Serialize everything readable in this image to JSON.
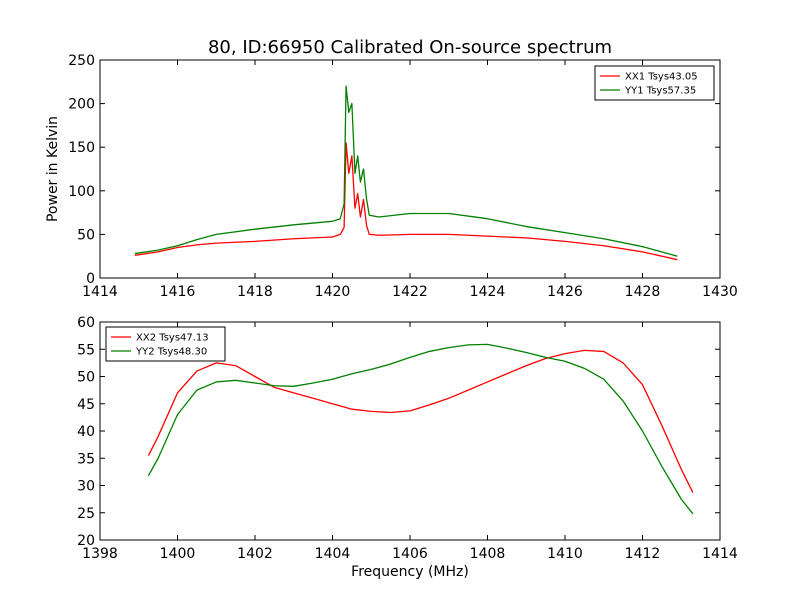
{
  "chart_data": [
    {
      "type": "line",
      "title": "80, ID:66950 Calibrated On-source spectrum",
      "xlabel": "",
      "ylabel": "Power in Kelvin",
      "xlim": [
        1414,
        1430
      ],
      "ylim": [
        0,
        250
      ],
      "xticks": [
        1414,
        1416,
        1418,
        1420,
        1422,
        1424,
        1426,
        1428,
        1430
      ],
      "yticks": [
        0,
        50,
        100,
        150,
        200,
        250
      ],
      "grid": false,
      "legend_position": "top-right",
      "series": [
        {
          "name": "XX1 Tsys43.05",
          "color": "#ff0000",
          "points": [
            [
              1414.9,
              26
            ],
            [
              1415.5,
              30
            ],
            [
              1416.0,
              35
            ],
            [
              1416.5,
              38
            ],
            [
              1417.0,
              40
            ],
            [
              1418.0,
              42
            ],
            [
              1419.0,
              45
            ],
            [
              1420.0,
              47
            ],
            [
              1420.2,
              50
            ],
            [
              1420.3,
              58
            ],
            [
              1420.35,
              155
            ],
            [
              1420.42,
              120
            ],
            [
              1420.5,
              140
            ],
            [
              1420.58,
              80
            ],
            [
              1420.65,
              97
            ],
            [
              1420.72,
              70
            ],
            [
              1420.8,
              90
            ],
            [
              1420.88,
              60
            ],
            [
              1420.95,
              50
            ],
            [
              1421.2,
              49
            ],
            [
              1422.0,
              50
            ],
            [
              1423.0,
              50
            ],
            [
              1424.0,
              48
            ],
            [
              1425.0,
              46
            ],
            [
              1426.0,
              42
            ],
            [
              1427.0,
              37
            ],
            [
              1428.0,
              30
            ],
            [
              1428.9,
              21
            ]
          ]
        },
        {
          "name": "YY1 Tsys57.35",
          "color": "#008000",
          "points": [
            [
              1414.9,
              28
            ],
            [
              1415.5,
              32
            ],
            [
              1416.0,
              37
            ],
            [
              1416.5,
              44
            ],
            [
              1417.0,
              50
            ],
            [
              1418.0,
              56
            ],
            [
              1419.0,
              61
            ],
            [
              1420.0,
              65
            ],
            [
              1420.2,
              68
            ],
            [
              1420.3,
              85
            ],
            [
              1420.35,
              220
            ],
            [
              1420.42,
              190
            ],
            [
              1420.5,
              200
            ],
            [
              1420.58,
              120
            ],
            [
              1420.65,
              140
            ],
            [
              1420.72,
              110
            ],
            [
              1420.8,
              125
            ],
            [
              1420.88,
              90
            ],
            [
              1420.95,
              72
            ],
            [
              1421.2,
              70
            ],
            [
              1422.0,
              74
            ],
            [
              1423.0,
              74
            ],
            [
              1424.0,
              68
            ],
            [
              1425.0,
              59
            ],
            [
              1426.0,
              52
            ],
            [
              1427.0,
              45
            ],
            [
              1428.0,
              36
            ],
            [
              1428.9,
              25
            ]
          ]
        }
      ]
    },
    {
      "type": "line",
      "title": "",
      "xlabel": "Frequency (MHz)",
      "ylabel": "",
      "xlim": [
        1398,
        1414
      ],
      "ylim": [
        20,
        60
      ],
      "xticks": [
        1398,
        1400,
        1402,
        1404,
        1406,
        1408,
        1410,
        1412,
        1414
      ],
      "yticks": [
        20,
        25,
        30,
        35,
        40,
        45,
        50,
        55,
        60
      ],
      "grid": false,
      "legend_position": "top-left",
      "series": [
        {
          "name": "XX2 Tsys47.13",
          "color": "#ff0000",
          "points": [
            [
              1399.25,
              35.5
            ],
            [
              1399.5,
              39
            ],
            [
              1400.0,
              47
            ],
            [
              1400.5,
              51
            ],
            [
              1401.0,
              52.5
            ],
            [
              1401.5,
              52
            ],
            [
              1402.0,
              50
            ],
            [
              1402.5,
              48
            ],
            [
              1403.0,
              47
            ],
            [
              1403.5,
              46
            ],
            [
              1404.0,
              45
            ],
            [
              1404.5,
              44
            ],
            [
              1405.0,
              43.6
            ],
            [
              1405.5,
              43.4
            ],
            [
              1406.0,
              43.7
            ],
            [
              1406.5,
              44.8
            ],
            [
              1407.0,
              46
            ],
            [
              1407.5,
              47.5
            ],
            [
              1408.0,
              49
            ],
            [
              1408.5,
              50.5
            ],
            [
              1409.0,
              52
            ],
            [
              1409.5,
              53.3
            ],
            [
              1410.0,
              54.2
            ],
            [
              1410.5,
              54.8
            ],
            [
              1411.0,
              54.6
            ],
            [
              1411.5,
              52.5
            ],
            [
              1412.0,
              48.5
            ],
            [
              1412.5,
              41
            ],
            [
              1413.0,
              33
            ],
            [
              1413.3,
              28.7
            ]
          ]
        },
        {
          "name": "YY2 Tsys48.30",
          "color": "#008000",
          "points": [
            [
              1399.25,
              31.8
            ],
            [
              1399.5,
              35
            ],
            [
              1400.0,
              43
            ],
            [
              1400.5,
              47.5
            ],
            [
              1401.0,
              49
            ],
            [
              1401.5,
              49.3
            ],
            [
              1402.0,
              48.8
            ],
            [
              1402.5,
              48.3
            ],
            [
              1403.0,
              48.2
            ],
            [
              1403.5,
              48.8
            ],
            [
              1404.0,
              49.5
            ],
            [
              1404.5,
              50.5
            ],
            [
              1405.0,
              51.3
            ],
            [
              1405.5,
              52.3
            ],
            [
              1406.0,
              53.5
            ],
            [
              1406.5,
              54.6
            ],
            [
              1407.0,
              55.3
            ],
            [
              1407.5,
              55.8
            ],
            [
              1408.0,
              55.9
            ],
            [
              1408.5,
              55.2
            ],
            [
              1409.0,
              54.4
            ],
            [
              1409.5,
              53.5
            ],
            [
              1410.0,
              52.8
            ],
            [
              1410.5,
              51.5
            ],
            [
              1411.0,
              49.5
            ],
            [
              1411.5,
              45.5
            ],
            [
              1412.0,
              40
            ],
            [
              1412.5,
              33.5
            ],
            [
              1413.0,
              27.5
            ],
            [
              1413.3,
              24.8
            ]
          ]
        }
      ]
    }
  ]
}
